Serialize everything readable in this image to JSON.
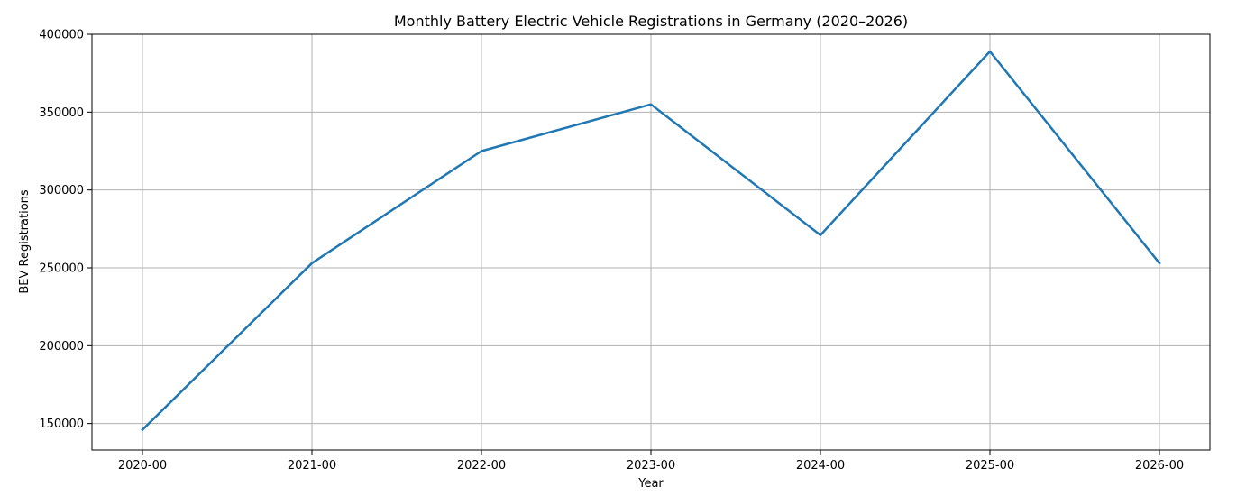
{
  "chart_data": {
    "type": "line",
    "title": "Monthly Battery Electric Vehicle Registrations in Germany (2020–2026)",
    "xlabel": "Year",
    "ylabel": "BEV Registrations",
    "x": [
      "2020-00",
      "2021-00",
      "2022-00",
      "2023-00",
      "2024-00",
      "2025-00",
      "2026-00"
    ],
    "series": [
      {
        "values": [
          146000,
          253000,
          325000,
          355000,
          271000,
          389000,
          253000
        ],
        "color": "#1f77b4"
      }
    ],
    "yticks": [
      150000,
      200000,
      250000,
      300000,
      350000,
      400000
    ],
    "ylim": [
      133000,
      400000
    ],
    "grid": true,
    "legend": "none"
  }
}
